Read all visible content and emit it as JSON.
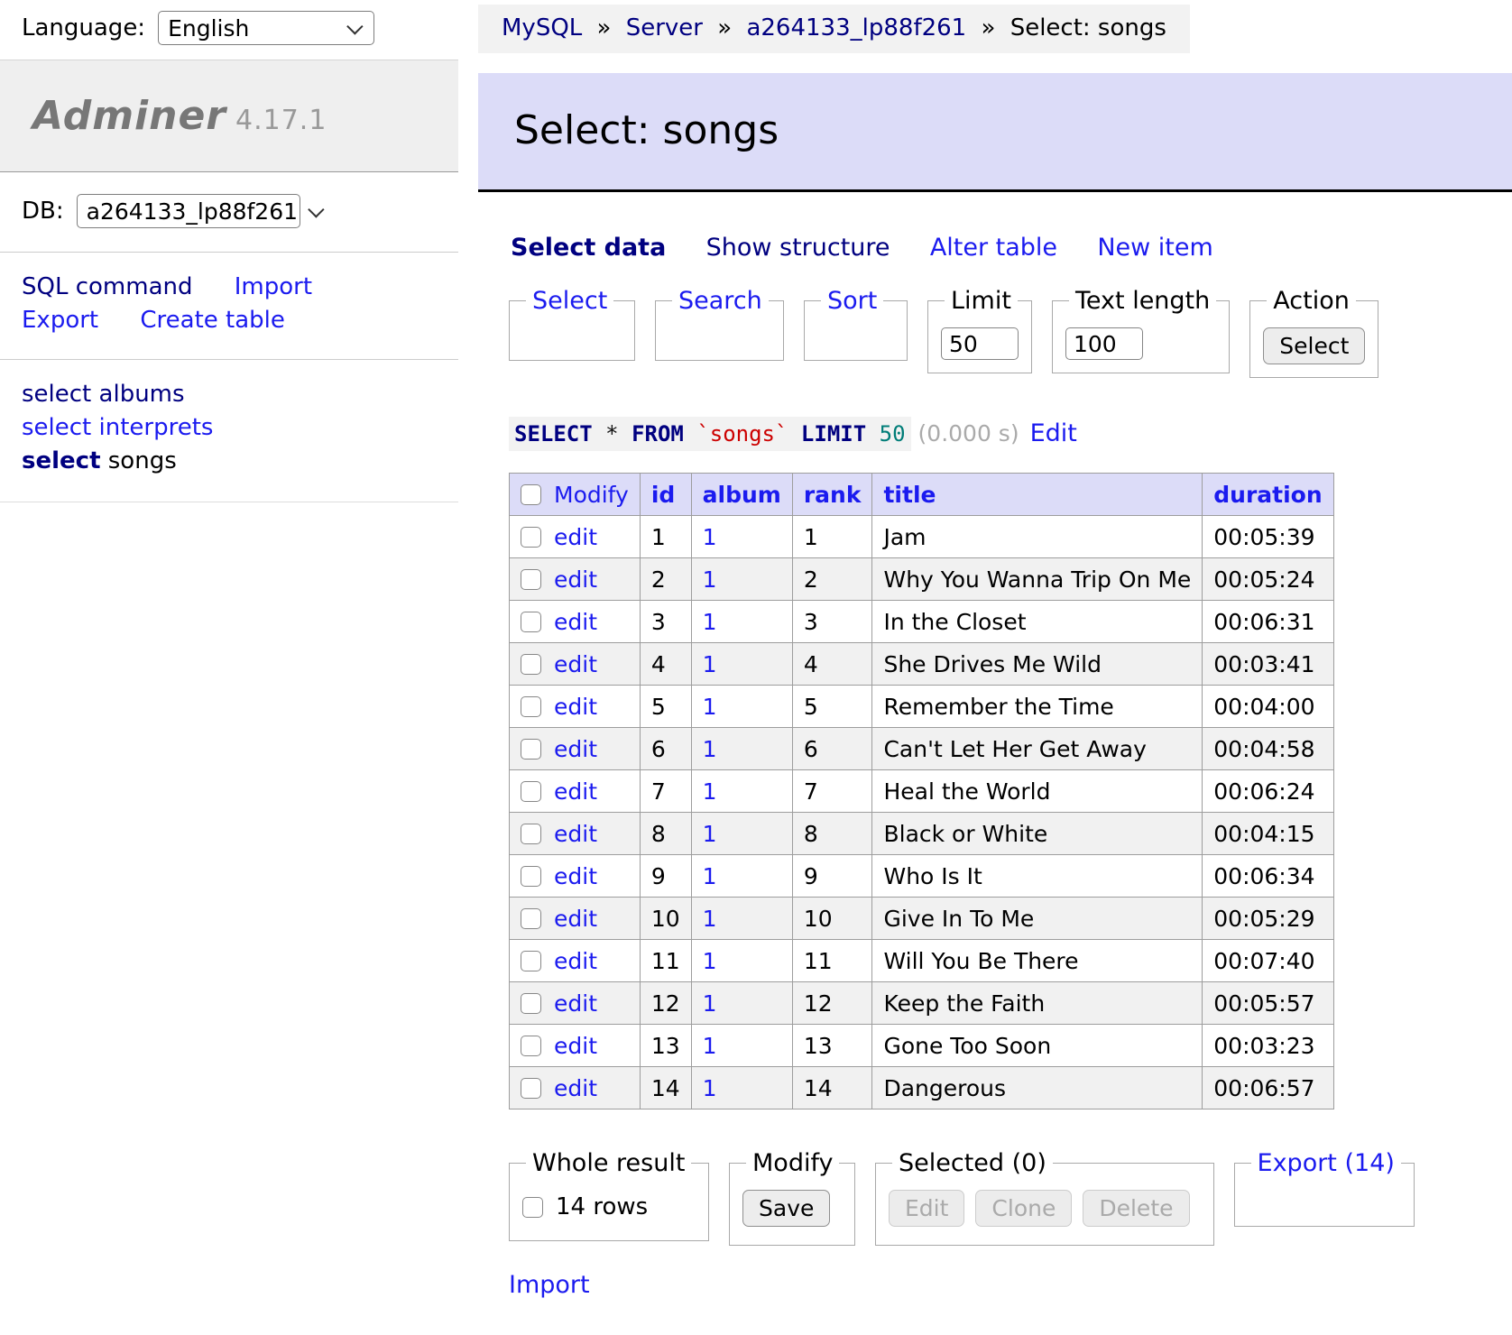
{
  "colors": {
    "link_blue": "#1b1bef",
    "link_navy": "#000080",
    "header_bg": "#dcdcf8",
    "banner_bg": "#efefef",
    "stripe_bg": "#f1f1f1",
    "sql_table_red": "#cc0000",
    "sql_number_teal": "#007d78"
  },
  "language": {
    "label": "Language:",
    "value": "English"
  },
  "brand": {
    "name": "Adminer",
    "version": "4.17.1"
  },
  "db": {
    "label": "DB:",
    "value": "a264133_lp88f261"
  },
  "sidebar": {
    "sql_command": "SQL command",
    "import": "Import",
    "export": "Export",
    "create_table": "Create table",
    "tables": [
      {
        "select": "select",
        "name": "albums"
      },
      {
        "select": "select",
        "name": "interprets"
      },
      {
        "select": "select",
        "name": "songs"
      }
    ]
  },
  "breadcrumb": {
    "items": [
      "MySQL",
      "Server",
      "a264133_lp88f261"
    ],
    "separator": "»",
    "current": "Select: songs"
  },
  "header": {
    "title": "Select: songs"
  },
  "tabs": [
    {
      "label": "Select data"
    },
    {
      "label": "Show structure"
    },
    {
      "label": "Alter table"
    },
    {
      "label": "New item"
    }
  ],
  "filters": {
    "select_legend": "Select",
    "search_legend": "Search",
    "sort_legend": "Sort",
    "limit_legend": "Limit",
    "limit_value": "50",
    "text_length_legend": "Text length",
    "text_length_value": "100",
    "action_legend": "Action",
    "action_button": "Select"
  },
  "query": {
    "kw_select": "SELECT",
    "star": "*",
    "kw_from": "FROM",
    "table": "`songs`",
    "kw_limit": "LIMIT",
    "limit_num": "50",
    "time": "(0.000 s)",
    "edit_link": "Edit"
  },
  "table": {
    "headers": {
      "modify": "Modify",
      "id": "id",
      "album": "album",
      "rank": "rank",
      "title": "title",
      "duration": "duration"
    },
    "edit_label": "edit",
    "rows": [
      {
        "id": "1",
        "album": "1",
        "rank": "1",
        "title": "Jam",
        "duration": "00:05:39"
      },
      {
        "id": "2",
        "album": "1",
        "rank": "2",
        "title": "Why You Wanna Trip On Me",
        "duration": "00:05:24"
      },
      {
        "id": "3",
        "album": "1",
        "rank": "3",
        "title": "In the Closet",
        "duration": "00:06:31"
      },
      {
        "id": "4",
        "album": "1",
        "rank": "4",
        "title": "She Drives Me Wild",
        "duration": "00:03:41"
      },
      {
        "id": "5",
        "album": "1",
        "rank": "5",
        "title": "Remember the Time",
        "duration": "00:04:00"
      },
      {
        "id": "6",
        "album": "1",
        "rank": "6",
        "title": "Can't Let Her Get Away",
        "duration": "00:04:58"
      },
      {
        "id": "7",
        "album": "1",
        "rank": "7",
        "title": "Heal the World",
        "duration": "00:06:24"
      },
      {
        "id": "8",
        "album": "1",
        "rank": "8",
        "title": "Black or White",
        "duration": "00:04:15"
      },
      {
        "id": "9",
        "album": "1",
        "rank": "9",
        "title": "Who Is It",
        "duration": "00:06:34"
      },
      {
        "id": "10",
        "album": "1",
        "rank": "10",
        "title": "Give In To Me",
        "duration": "00:05:29"
      },
      {
        "id": "11",
        "album": "1",
        "rank": "11",
        "title": "Will You Be There",
        "duration": "00:07:40"
      },
      {
        "id": "12",
        "album": "1",
        "rank": "12",
        "title": "Keep the Faith",
        "duration": "00:05:57"
      },
      {
        "id": "13",
        "album": "1",
        "rank": "13",
        "title": "Gone Too Soon",
        "duration": "00:03:23"
      },
      {
        "id": "14",
        "album": "1",
        "rank": "14",
        "title": "Dangerous",
        "duration": "00:06:57"
      }
    ]
  },
  "footer": {
    "whole_result_legend": "Whole result",
    "rows_count_label": "14 rows",
    "modify_legend": "Modify",
    "save_button": "Save",
    "selected_legend": "Selected (0)",
    "edit_button": "Edit",
    "clone_button": "Clone",
    "delete_button": "Delete",
    "export_legend": "Export (14)",
    "import_link": "Import"
  }
}
